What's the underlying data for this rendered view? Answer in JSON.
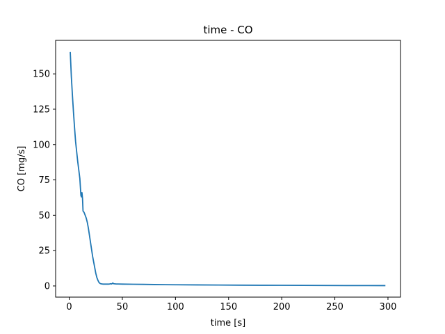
{
  "chart_data": {
    "type": "line",
    "title": "time - CO",
    "xlabel": "time [s]",
    "ylabel": "CO [mg/s]",
    "xlim": [
      -12.8,
      311.8
    ],
    "ylim": [
      -7.9,
      173.7
    ],
    "xticks": [
      0,
      50,
      100,
      150,
      200,
      250,
      300
    ],
    "yticks": [
      0,
      25,
      50,
      75,
      100,
      125,
      150
    ],
    "grid": false,
    "series_color": "#1f77b4",
    "series": [
      {
        "x": [
          1,
          2,
          3,
          4,
          5,
          6,
          7,
          8,
          9,
          10,
          11,
          11.5,
          12,
          12.5,
          13,
          14,
          15,
          16,
          17,
          18,
          19,
          20,
          21,
          22,
          23,
          24,
          25,
          26,
          27,
          28,
          29,
          30,
          31,
          32,
          33,
          34,
          35,
          36,
          37,
          38,
          39,
          40,
          41,
          42,
          43,
          44,
          46,
          50,
          60,
          70,
          80,
          90,
          100,
          120,
          140,
          160,
          180,
          200,
          220,
          240,
          260,
          280,
          297
        ],
        "y": [
          165,
          148,
          135,
          123,
          112,
          102,
          95,
          88,
          82,
          76,
          64,
          63,
          66,
          62,
          53,
          52,
          50,
          48,
          45,
          41,
          36,
          31,
          26,
          21,
          17,
          13,
          9,
          6,
          4,
          2.5,
          1.8,
          1.5,
          1.4,
          1.3,
          1.3,
          1.3,
          1.3,
          1.3,
          1.3,
          1.4,
          1.6,
          1.4,
          2.1,
          1.5,
          1.5,
          1.4,
          1.4,
          1.3,
          1.2,
          1.1,
          1.0,
          0.9,
          0.85,
          0.75,
          0.65,
          0.55,
          0.5,
          0.45,
          0.4,
          0.35,
          0.3,
          0.28,
          0.25
        ]
      }
    ]
  }
}
